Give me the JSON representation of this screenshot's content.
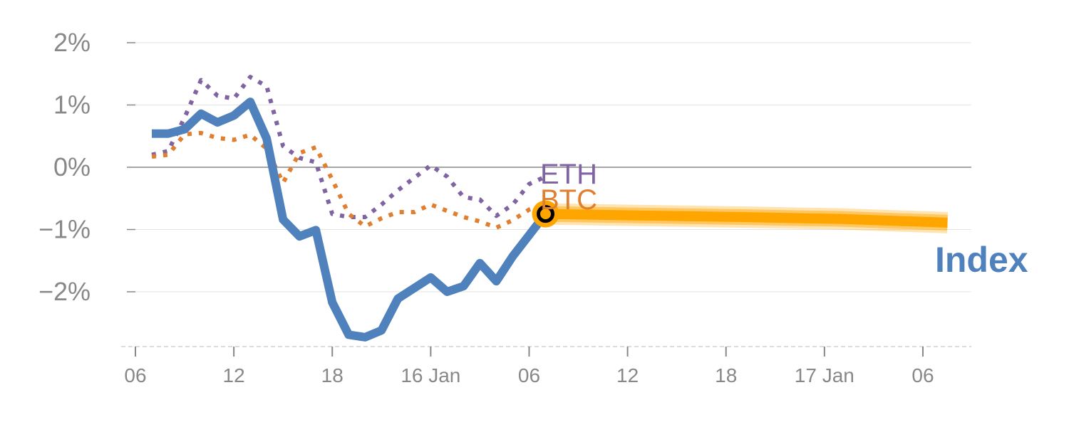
{
  "chart_data": {
    "type": "line",
    "title": "",
    "xlabel": "",
    "ylabel": "",
    "x_unit": "hours since 06:00 15 Jan",
    "xlim": [
      0,
      51
    ],
    "ylim": [
      -2.9,
      2.2
    ],
    "grid": true,
    "y_ticks": [
      {
        "value": 2,
        "label": "2%"
      },
      {
        "value": 1,
        "label": "1%"
      },
      {
        "value": 0,
        "label": "0%"
      },
      {
        "value": -1,
        "label": "−1%"
      },
      {
        "value": -2,
        "label": "−2%"
      }
    ],
    "x_ticks": [
      {
        "value": 0,
        "label": "06"
      },
      {
        "value": 6,
        "label": "12"
      },
      {
        "value": 12,
        "label": "18"
      },
      {
        "value": 18,
        "label": "16 Jan"
      },
      {
        "value": 24,
        "label": "06"
      },
      {
        "value": 30,
        "label": "12"
      },
      {
        "value": 36,
        "label": "18"
      },
      {
        "value": 42,
        "label": "17 Jan"
      },
      {
        "value": 48,
        "label": "06"
      }
    ],
    "x": [
      1,
      2,
      3,
      4,
      5,
      6,
      7,
      8,
      9,
      10,
      11,
      12,
      13,
      14,
      15,
      16,
      17,
      18,
      19,
      20,
      21,
      22,
      23,
      24,
      25
    ],
    "series": [
      {
        "name": "ETH",
        "label": "ETH",
        "color": "#8064a2",
        "style": "dotted",
        "values": [
          0.2,
          0.26,
          0.8,
          1.4,
          1.15,
          1.1,
          1.45,
          1.3,
          0.34,
          0.15,
          0.08,
          -0.75,
          -0.8,
          -0.8,
          -0.6,
          -0.37,
          -0.17,
          0.03,
          -0.15,
          -0.48,
          -0.52,
          -0.78,
          -0.6,
          -0.27,
          -0.15
        ]
      },
      {
        "name": "BTC",
        "label": "BTC",
        "color": "#e07f30",
        "style": "dotted",
        "values": [
          0.17,
          0.2,
          0.53,
          0.55,
          0.47,
          0.44,
          0.52,
          0.3,
          -0.25,
          0.23,
          0.32,
          -0.2,
          -0.75,
          -0.95,
          -0.82,
          -0.72,
          -0.72,
          -0.6,
          -0.7,
          -0.8,
          -0.87,
          -0.97,
          -0.85,
          -0.68,
          -0.58
        ]
      },
      {
        "name": "Index",
        "label": "Index",
        "color": "#4f81bd",
        "style": "solid",
        "values": [
          0.54,
          0.54,
          0.61,
          0.86,
          0.72,
          0.83,
          1.05,
          0.46,
          -0.84,
          -1.11,
          -1.01,
          -2.17,
          -2.69,
          -2.73,
          -2.62,
          -2.11,
          -1.94,
          -1.77,
          -2.0,
          -1.91,
          -1.54,
          -1.83,
          -1.43,
          -1.09,
          -0.75
        ]
      }
    ],
    "forecast": {
      "name": "Index forecast",
      "color": "#ffa500",
      "x": [
        25,
        37,
        43,
        49.5
      ],
      "values": [
        -0.75,
        -0.8,
        -0.83,
        -0.89
      ]
    },
    "current_marker": {
      "x": 25,
      "value": -0.75
    }
  }
}
